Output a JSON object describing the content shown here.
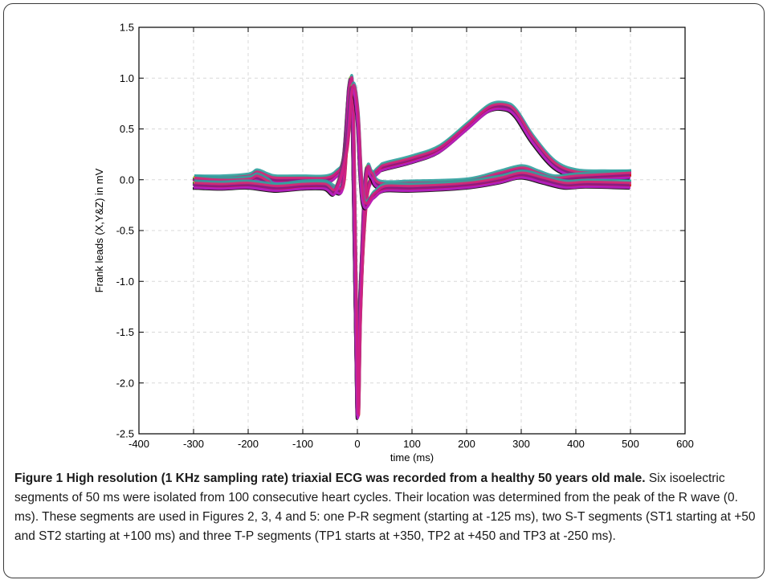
{
  "figure": {
    "caption_bold": "Figure 1 High resolution (1 KHz sampling rate) triaxial ECG was recorded from a healthy 50 years old male.",
    "caption_text": " Six isoelectric segments of 50 ms were isolated from 100 consecutive heart cycles. Their location was determined from the peak of the R wave (0. ms). These segments are used in Figures 2, 3, 4 and 5: one P-R segment (starting at -125 ms), two S-T segments (ST1 starting at +50 and ST2 starting at +100 ms) and three T-P segments (TP1 starts at +350, TP2 at +450 and TP3 at -250 ms)."
  },
  "chart_data": {
    "type": "line",
    "title": "",
    "xlabel": "time (ms)",
    "ylabel": "Frank leads (X,Y&Z) in mV",
    "xlim": [
      -400,
      600
    ],
    "ylim": [
      -2.5,
      1.5
    ],
    "xticks": [
      -400,
      -300,
      -200,
      -100,
      0,
      100,
      200,
      300,
      400,
      500,
      600
    ],
    "yticks": [
      -2.5,
      -2.0,
      -1.5,
      -1.0,
      -0.5,
      0.0,
      0.5,
      1.0,
      1.5
    ],
    "xtick_labels": [
      "-400",
      "-300",
      "-200",
      "-100",
      "0",
      "100",
      "200",
      "300",
      "400",
      "500",
      "600"
    ],
    "ytick_labels": [
      "-2.5",
      "-2.0",
      "-1.5",
      "-1.0",
      "-0.5",
      "0.0",
      "0.5",
      "1.0",
      "1.5"
    ],
    "grid": true,
    "legend": "none",
    "overlay_colors": [
      "#000000",
      "#1a1aa0",
      "#d01818",
      "#1a8a1a",
      "#c8c020",
      "#30a0a0",
      "#8a1a8a",
      "#c020c0",
      "#d02080"
    ],
    "series": [
      {
        "x": [
          -300,
          -250,
          -200,
          -185,
          -165,
          -150,
          -100,
          -60,
          -40,
          -25,
          -15,
          -8,
          0,
          5,
          15,
          25,
          40,
          50,
          100,
          150,
          200,
          240,
          270,
          290,
          320,
          360,
          400,
          450,
          500
        ],
        "y": [
          0.0,
          0.0,
          0.02,
          0.06,
          0.02,
          0.0,
          0.0,
          0.0,
          0.05,
          0.2,
          0.85,
          0.5,
          -2.2,
          -1.2,
          -0.25,
          0.0,
          0.1,
          0.13,
          0.2,
          0.3,
          0.52,
          0.7,
          0.72,
          0.65,
          0.4,
          0.15,
          0.06,
          0.05,
          0.05
        ]
      },
      {
        "x": [
          -300,
          -250,
          -200,
          -185,
          -165,
          -150,
          -100,
          -60,
          -40,
          -25,
          -15,
          -8,
          0,
          5,
          15,
          25,
          40,
          100,
          200,
          260,
          300,
          330,
          360,
          400,
          500
        ],
        "y": [
          0.0,
          -0.02,
          -0.01,
          0.02,
          -0.03,
          -0.08,
          -0.05,
          -0.05,
          -0.1,
          0.0,
          0.9,
          0.6,
          -2.25,
          -1.3,
          0.0,
          0.05,
          -0.05,
          -0.05,
          -0.03,
          0.05,
          0.1,
          0.05,
          0.0,
          0.02,
          0.05
        ]
      },
      {
        "x": [
          -300,
          -250,
          -200,
          -150,
          -100,
          -60,
          -40,
          -20,
          -10,
          0,
          10,
          30,
          50,
          100,
          200,
          260,
          300,
          340,
          380,
          420,
          500
        ],
        "y": [
          -0.05,
          -0.06,
          -0.05,
          -0.08,
          -0.06,
          -0.06,
          -0.1,
          0.3,
          0.9,
          0.65,
          -0.2,
          -0.15,
          -0.08,
          -0.08,
          -0.05,
          0.0,
          0.05,
          0.0,
          -0.05,
          -0.04,
          -0.05
        ]
      }
    ]
  }
}
